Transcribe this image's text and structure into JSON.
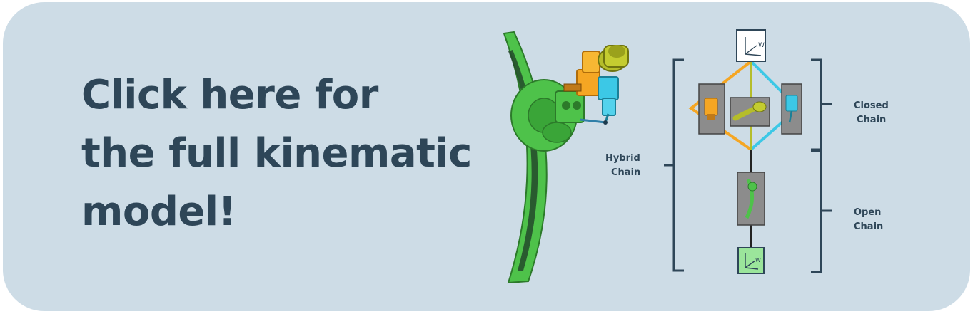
{
  "banner": {
    "cta_lines": [
      "Click here for",
      "the full kinematic",
      "model!"
    ]
  },
  "diagram": {
    "labels": {
      "hybrid": [
        "Hybrid",
        "Chain"
      ],
      "closed": [
        "Closed",
        "Chain"
      ],
      "open": [
        "Open",
        "Chain"
      ]
    },
    "frame_symbol": "W"
  },
  "colors": {
    "banner_bg": "#cddce6",
    "text": "#2e4658",
    "green": "#4ec24a",
    "orange": "#f5a623",
    "olive": "#b5bd2a",
    "cyan": "#3cc8e6",
    "node_gray": "#8c8c8c"
  }
}
